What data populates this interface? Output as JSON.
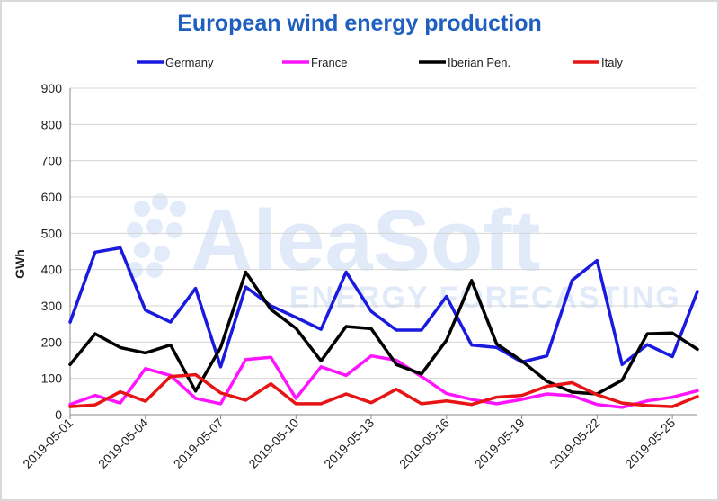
{
  "chart_data": {
    "type": "line",
    "title": "European wind energy production",
    "ylabel": "GWh",
    "xlabel": "",
    "ylim": [
      0,
      900
    ],
    "yticks": [
      0,
      100,
      200,
      300,
      400,
      500,
      600,
      700,
      800,
      900
    ],
    "grid": true,
    "legend": "top",
    "watermark": {
      "line1": "AleaSoft",
      "line2": "ENERGY FORECASTING"
    },
    "x": [
      "2019-05-01",
      "2019-05-02",
      "2019-05-03",
      "2019-05-04",
      "2019-05-05",
      "2019-05-06",
      "2019-05-07",
      "2019-05-08",
      "2019-05-09",
      "2019-05-10",
      "2019-05-11",
      "2019-05-12",
      "2019-05-13",
      "2019-05-14",
      "2019-05-15",
      "2019-05-16",
      "2019-05-17",
      "2019-05-18",
      "2019-05-19",
      "2019-05-20",
      "2019-05-21",
      "2019-05-22",
      "2019-05-23",
      "2019-05-24",
      "2019-05-25",
      "2019-05-26"
    ],
    "xtick_labels": [
      "2019-05-01",
      "2019-05-04",
      "2019-05-07",
      "2019-05-10",
      "2019-05-13",
      "2019-05-16",
      "2019-05-19",
      "2019-05-22",
      "2019-05-25"
    ],
    "series": [
      {
        "name": "Germany",
        "color": "#1a1adf",
        "values": [
          255,
          448,
          460,
          288,
          255,
          348,
          132,
          352,
          300,
          268,
          235,
          393,
          285,
          233,
          233,
          326,
          192,
          185,
          145,
          162,
          370,
          425,
          138,
          193,
          160,
          340
        ]
      },
      {
        "name": "France",
        "color": "#ff14ff",
        "values": [
          28,
          53,
          32,
          127,
          108,
          45,
          30,
          152,
          158,
          45,
          132,
          108,
          162,
          150,
          105,
          58,
          42,
          30,
          42,
          57,
          52,
          28,
          20,
          38,
          48,
          66
        ]
      },
      {
        "name": "Iberian Pen.",
        "color": "#000000",
        "values": [
          138,
          223,
          185,
          170,
          192,
          65,
          185,
          393,
          290,
          238,
          148,
          243,
          237,
          138,
          112,
          205,
          370,
          195,
          148,
          92,
          62,
          57,
          95,
          223,
          225,
          180
        ]
      },
      {
        "name": "Italy",
        "color": "#e61414",
        "values": [
          22,
          27,
          63,
          37,
          105,
          110,
          60,
          40,
          85,
          30,
          30,
          57,
          33,
          70,
          30,
          38,
          28,
          48,
          53,
          78,
          88,
          55,
          32,
          25,
          22,
          50
        ]
      }
    ]
  }
}
